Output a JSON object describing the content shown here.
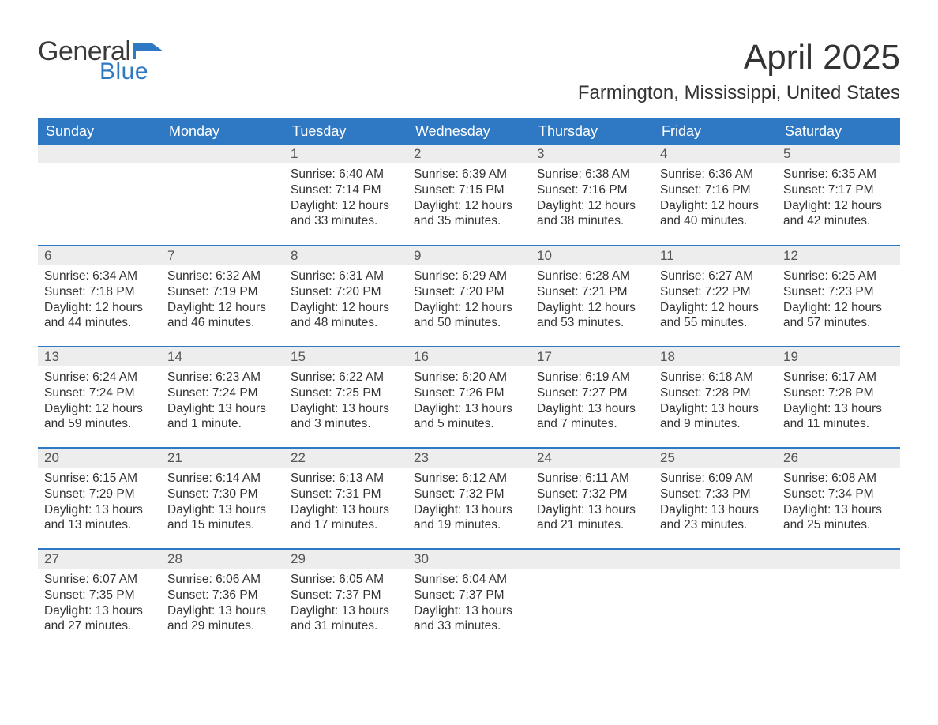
{
  "logo": {
    "text_general": "General",
    "text_blue": "Blue",
    "flag_color": "#2f78c4"
  },
  "title": "April 2025",
  "location": "Farmington, Mississippi, United States",
  "colors": {
    "header_bg": "#2f78c4",
    "header_text": "#ffffff",
    "daynum_bg": "#ededed",
    "row_border": "#2f78c4",
    "body_text": "#333333",
    "page_bg": "#ffffff"
  },
  "day_headers": [
    "Sunday",
    "Monday",
    "Tuesday",
    "Wednesday",
    "Thursday",
    "Friday",
    "Saturday"
  ],
  "weeks": [
    [
      {
        "day": "",
        "sunrise": "",
        "sunset": "",
        "daylight": ""
      },
      {
        "day": "",
        "sunrise": "",
        "sunset": "",
        "daylight": ""
      },
      {
        "day": "1",
        "sunrise": "Sunrise: 6:40 AM",
        "sunset": "Sunset: 7:14 PM",
        "daylight": "Daylight: 12 hours and 33 minutes."
      },
      {
        "day": "2",
        "sunrise": "Sunrise: 6:39 AM",
        "sunset": "Sunset: 7:15 PM",
        "daylight": "Daylight: 12 hours and 35 minutes."
      },
      {
        "day": "3",
        "sunrise": "Sunrise: 6:38 AM",
        "sunset": "Sunset: 7:16 PM",
        "daylight": "Daylight: 12 hours and 38 minutes."
      },
      {
        "day": "4",
        "sunrise": "Sunrise: 6:36 AM",
        "sunset": "Sunset: 7:16 PM",
        "daylight": "Daylight: 12 hours and 40 minutes."
      },
      {
        "day": "5",
        "sunrise": "Sunrise: 6:35 AM",
        "sunset": "Sunset: 7:17 PM",
        "daylight": "Daylight: 12 hours and 42 minutes."
      }
    ],
    [
      {
        "day": "6",
        "sunrise": "Sunrise: 6:34 AM",
        "sunset": "Sunset: 7:18 PM",
        "daylight": "Daylight: 12 hours and 44 minutes."
      },
      {
        "day": "7",
        "sunrise": "Sunrise: 6:32 AM",
        "sunset": "Sunset: 7:19 PM",
        "daylight": "Daylight: 12 hours and 46 minutes."
      },
      {
        "day": "8",
        "sunrise": "Sunrise: 6:31 AM",
        "sunset": "Sunset: 7:20 PM",
        "daylight": "Daylight: 12 hours and 48 minutes."
      },
      {
        "day": "9",
        "sunrise": "Sunrise: 6:29 AM",
        "sunset": "Sunset: 7:20 PM",
        "daylight": "Daylight: 12 hours and 50 minutes."
      },
      {
        "day": "10",
        "sunrise": "Sunrise: 6:28 AM",
        "sunset": "Sunset: 7:21 PM",
        "daylight": "Daylight: 12 hours and 53 minutes."
      },
      {
        "day": "11",
        "sunrise": "Sunrise: 6:27 AM",
        "sunset": "Sunset: 7:22 PM",
        "daylight": "Daylight: 12 hours and 55 minutes."
      },
      {
        "day": "12",
        "sunrise": "Sunrise: 6:25 AM",
        "sunset": "Sunset: 7:23 PM",
        "daylight": "Daylight: 12 hours and 57 minutes."
      }
    ],
    [
      {
        "day": "13",
        "sunrise": "Sunrise: 6:24 AM",
        "sunset": "Sunset: 7:24 PM",
        "daylight": "Daylight: 12 hours and 59 minutes."
      },
      {
        "day": "14",
        "sunrise": "Sunrise: 6:23 AM",
        "sunset": "Sunset: 7:24 PM",
        "daylight": "Daylight: 13 hours and 1 minute."
      },
      {
        "day": "15",
        "sunrise": "Sunrise: 6:22 AM",
        "sunset": "Sunset: 7:25 PM",
        "daylight": "Daylight: 13 hours and 3 minutes."
      },
      {
        "day": "16",
        "sunrise": "Sunrise: 6:20 AM",
        "sunset": "Sunset: 7:26 PM",
        "daylight": "Daylight: 13 hours and 5 minutes."
      },
      {
        "day": "17",
        "sunrise": "Sunrise: 6:19 AM",
        "sunset": "Sunset: 7:27 PM",
        "daylight": "Daylight: 13 hours and 7 minutes."
      },
      {
        "day": "18",
        "sunrise": "Sunrise: 6:18 AM",
        "sunset": "Sunset: 7:28 PM",
        "daylight": "Daylight: 13 hours and 9 minutes."
      },
      {
        "day": "19",
        "sunrise": "Sunrise: 6:17 AM",
        "sunset": "Sunset: 7:28 PM",
        "daylight": "Daylight: 13 hours and 11 minutes."
      }
    ],
    [
      {
        "day": "20",
        "sunrise": "Sunrise: 6:15 AM",
        "sunset": "Sunset: 7:29 PM",
        "daylight": "Daylight: 13 hours and 13 minutes."
      },
      {
        "day": "21",
        "sunrise": "Sunrise: 6:14 AM",
        "sunset": "Sunset: 7:30 PM",
        "daylight": "Daylight: 13 hours and 15 minutes."
      },
      {
        "day": "22",
        "sunrise": "Sunrise: 6:13 AM",
        "sunset": "Sunset: 7:31 PM",
        "daylight": "Daylight: 13 hours and 17 minutes."
      },
      {
        "day": "23",
        "sunrise": "Sunrise: 6:12 AM",
        "sunset": "Sunset: 7:32 PM",
        "daylight": "Daylight: 13 hours and 19 minutes."
      },
      {
        "day": "24",
        "sunrise": "Sunrise: 6:11 AM",
        "sunset": "Sunset: 7:32 PM",
        "daylight": "Daylight: 13 hours and 21 minutes."
      },
      {
        "day": "25",
        "sunrise": "Sunrise: 6:09 AM",
        "sunset": "Sunset: 7:33 PM",
        "daylight": "Daylight: 13 hours and 23 minutes."
      },
      {
        "day": "26",
        "sunrise": "Sunrise: 6:08 AM",
        "sunset": "Sunset: 7:34 PM",
        "daylight": "Daylight: 13 hours and 25 minutes."
      }
    ],
    [
      {
        "day": "27",
        "sunrise": "Sunrise: 6:07 AM",
        "sunset": "Sunset: 7:35 PM",
        "daylight": "Daylight: 13 hours and 27 minutes."
      },
      {
        "day": "28",
        "sunrise": "Sunrise: 6:06 AM",
        "sunset": "Sunset: 7:36 PM",
        "daylight": "Daylight: 13 hours and 29 minutes."
      },
      {
        "day": "29",
        "sunrise": "Sunrise: 6:05 AM",
        "sunset": "Sunset: 7:37 PM",
        "daylight": "Daylight: 13 hours and 31 minutes."
      },
      {
        "day": "30",
        "sunrise": "Sunrise: 6:04 AM",
        "sunset": "Sunset: 7:37 PM",
        "daylight": "Daylight: 13 hours and 33 minutes."
      },
      {
        "day": "",
        "sunrise": "",
        "sunset": "",
        "daylight": ""
      },
      {
        "day": "",
        "sunrise": "",
        "sunset": "",
        "daylight": ""
      },
      {
        "day": "",
        "sunrise": "",
        "sunset": "",
        "daylight": ""
      }
    ]
  ]
}
